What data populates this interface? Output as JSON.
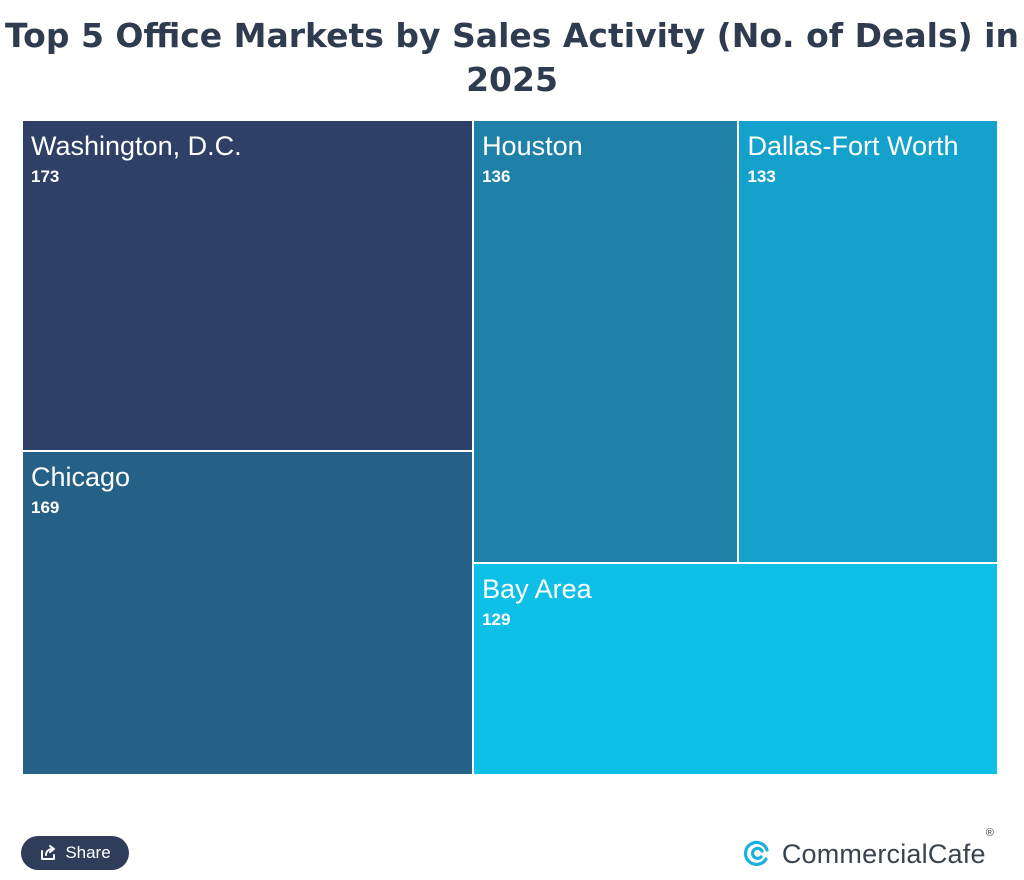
{
  "chart_data": {
    "type": "treemap",
    "title": "Top 5 Office Markets by Sales Activity (No. of Deals) in 2025",
    "items": [
      {
        "name": "Washington, D.C.",
        "value": 173,
        "color": "#2e4066"
      },
      {
        "name": "Chicago",
        "value": 169,
        "color": "#256086"
      },
      {
        "name": "Houston",
        "value": 136,
        "color": "#1f80a8"
      },
      {
        "name": "Dallas-Fort Worth",
        "value": 133,
        "color": "#14a2cd"
      },
      {
        "name": "Bay Area",
        "value": 129,
        "color": "#0ebfe8"
      }
    ]
  },
  "footer": {
    "share_label": "Share",
    "brand_name": "CommercialCafe",
    "brand_registered": "®",
    "share_icon": "share-icon",
    "brand_icon": "commercialcafe-logo-icon",
    "accent_color": "#1ab0e0"
  }
}
